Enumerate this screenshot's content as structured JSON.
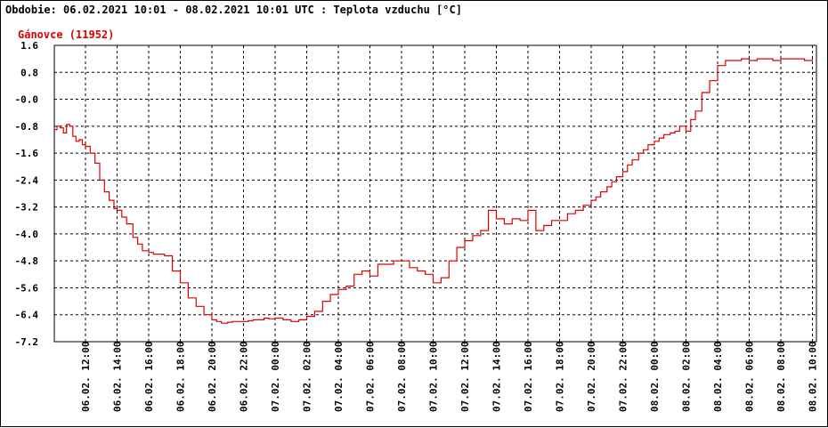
{
  "title": "Obdobie: 06.02.2021 10:01 - 08.02.2021 10:01 UTC : Teplota vzduchu [°C]",
  "chart_data": {
    "type": "line",
    "series_label": "Gánovce (11952)",
    "y_ticks": [
      "1.6",
      "0.8",
      "-0.0",
      "-0.8",
      "-1.6",
      "-2.4",
      "-3.2",
      "-4.0",
      "-4.8",
      "-5.6",
      "-6.4",
      "-7.2"
    ],
    "ylim": [
      -7.2,
      1.6
    ],
    "x_ticks": [
      "06.02. 12:00",
      "06.02. 14:00",
      "06.02. 16:00",
      "06.02. 18:00",
      "06.02. 20:00",
      "06.02. 22:00",
      "07.02. 00:00",
      "07.02. 02:00",
      "07.02. 04:00",
      "07.02. 06:00",
      "07.02. 08:00",
      "07.02. 10:00",
      "07.02. 12:00",
      "07.02. 14:00",
      "07.02. 16:00",
      "07.02. 18:00",
      "07.02. 20:00",
      "07.02. 22:00",
      "08.02. 00:00",
      "08.02. 02:00",
      "08.02. 04:00",
      "08.02. 06:00",
      "08.02. 08:00",
      "08.02. 10:00"
    ],
    "grid": true,
    "colors": {
      "line": "#dd0000",
      "label": "#dd0000",
      "grid": "#000000"
    },
    "series": [
      {
        "name": "Gánovce (11952)",
        "x": [
          -1.98,
          -1.8,
          -1.6,
          -1.4,
          -1.2,
          -1.0,
          -0.8,
          -0.6,
          -0.4,
          -0.2,
          0.0,
          0.3,
          0.6,
          0.9,
          1.2,
          1.5,
          1.8,
          2.0,
          2.3,
          2.6,
          3.0,
          3.3,
          3.6,
          4.0,
          4.3,
          4.6,
          5.0,
          5.5,
          6.0,
          6.5,
          7.0,
          7.5,
          8.0,
          8.3,
          8.6,
          9.0,
          9.3,
          9.6,
          10.0,
          10.3,
          10.6,
          11.0,
          11.3,
          11.6,
          12.0,
          12.5,
          13.0,
          13.5,
          14.0,
          14.5,
          15.0,
          15.5,
          16.0,
          16.5,
          17.0,
          17.5,
          18.0,
          18.5,
          19.0,
          19.5,
          20.0,
          20.5,
          21.0,
          21.5,
          22.0,
          22.5,
          23.0,
          23.5,
          24.0,
          24.5,
          25.0,
          25.5,
          26.0,
          26.5,
          27.0,
          27.5,
          28.0,
          28.5,
          29.0,
          29.5,
          30.0,
          30.5,
          31.0,
          31.5,
          32.0,
          32.3,
          32.6,
          33.0,
          33.3,
          33.6,
          34.0,
          34.3,
          34.6,
          35.0,
          35.3,
          35.6,
          36.0,
          36.3,
          36.6,
          37.0,
          37.3,
          37.6,
          38.0,
          38.3,
          38.6,
          39.0,
          39.5,
          40.0,
          40.5,
          41.0,
          41.5,
          42.0,
          42.5,
          43.0,
          43.5,
          44.0,
          44.5,
          45.0,
          45.5,
          46.0
        ],
        "values": [
          -0.9,
          -0.8,
          -0.85,
          -1.0,
          -0.75,
          -0.8,
          -1.1,
          -1.25,
          -1.2,
          -1.35,
          -1.4,
          -1.6,
          -1.9,
          -2.4,
          -2.75,
          -3.0,
          -3.25,
          -3.3,
          -3.5,
          -3.7,
          -4.1,
          -4.3,
          -4.5,
          -4.55,
          -4.6,
          -4.6,
          -4.65,
          -5.1,
          -5.45,
          -5.9,
          -6.15,
          -6.4,
          -6.55,
          -6.6,
          -6.65,
          -6.62,
          -6.6,
          -6.6,
          -6.6,
          -6.58,
          -6.55,
          -6.55,
          -6.5,
          -6.52,
          -6.5,
          -6.55,
          -6.6,
          -6.55,
          -6.45,
          -6.3,
          -6.0,
          -5.8,
          -5.65,
          -5.55,
          -5.2,
          -5.1,
          -5.25,
          -4.9,
          -4.9,
          -4.8,
          -4.8,
          -5.0,
          -5.1,
          -5.2,
          -5.45,
          -5.3,
          -4.8,
          -4.4,
          -4.2,
          -4.05,
          -3.9,
          -3.3,
          -3.55,
          -3.7,
          -3.55,
          -3.6,
          -3.3,
          -3.9,
          -3.75,
          -3.6,
          -3.6,
          -3.4,
          -3.3,
          -3.15,
          -3.0,
          -2.9,
          -2.75,
          -2.6,
          -2.45,
          -2.3,
          -2.15,
          -1.95,
          -1.8,
          -1.6,
          -1.5,
          -1.35,
          -1.25,
          -1.15,
          -1.05,
          -1.0,
          -0.95,
          -0.8,
          -0.95,
          -0.6,
          -0.35,
          0.2,
          0.55,
          1.0,
          1.15,
          1.15,
          1.2,
          1.15,
          1.2,
          1.2,
          1.15,
          1.2,
          1.2,
          1.2,
          1.15,
          1.2
        ]
      }
    ]
  }
}
